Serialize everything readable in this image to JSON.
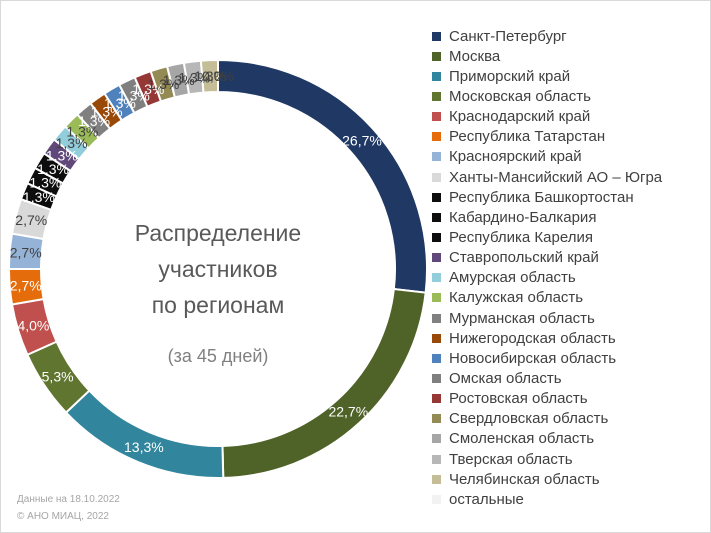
{
  "chart_data": {
    "type": "pie",
    "title_lines": [
      "Распределение",
      "участников",
      "по регионам"
    ],
    "subtitle": "(за 45 дней)",
    "legend_position": "right",
    "slices": [
      {
        "name": "Санкт-Петербург",
        "value": 26.7,
        "label": "26,7%",
        "color": "#1f3864"
      },
      {
        "name": "Москва",
        "value": 22.7,
        "label": "22,7%",
        "color": "#4f6228"
      },
      {
        "name": "Приморский край",
        "value": 13.3,
        "label": "13,3%",
        "color": "#31859c"
      },
      {
        "name": "Московская область",
        "value": 5.3,
        "label": "5,3%",
        "color": "#5f7530"
      },
      {
        "name": "Краснодарский край",
        "value": 4.0,
        "label": "4,0%",
        "color": "#c0504d"
      },
      {
        "name": "Республика Татарстан",
        "value": 2.7,
        "label": "2,7%",
        "color": "#e46c0a"
      },
      {
        "name": "Красноярский край",
        "value": 2.7,
        "label": "2,7%",
        "color": "#95b3d7"
      },
      {
        "name": "Ханты-Мансийский АО – Югра",
        "value": 2.7,
        "label": "2,7%",
        "color": "#d9d9d9"
      },
      {
        "name": "Республика Башкортостан",
        "value": 1.3,
        "label": "1,3%",
        "color": "#0d0d0d"
      },
      {
        "name": "Кабардино-Балкария",
        "value": 1.3,
        "label": "1,3%",
        "color": "#0d0d0d"
      },
      {
        "name": "Республика Карелия",
        "value": 1.3,
        "label": "1,3%",
        "color": "#0d0d0d"
      },
      {
        "name": "Ставропольский край",
        "value": 1.3,
        "label": "1,3%",
        "color": "#60497a"
      },
      {
        "name": "Амурская область",
        "value": 1.3,
        "label": "1,3%",
        "color": "#92cddc"
      },
      {
        "name": "Калужская область",
        "value": 1.3,
        "label": "1,3%",
        "color": "#9bbb59"
      },
      {
        "name": "Мурманская область",
        "value": 1.3,
        "label": "1,3%",
        "color": "#808080"
      },
      {
        "name": "Нижегородская область",
        "value": 1.3,
        "label": "1,3%",
        "color": "#984807"
      },
      {
        "name": "Новосибирская область",
        "value": 1.3,
        "label": "1,3%",
        "color": "#4f81bd"
      },
      {
        "name": "Омская область",
        "value": 1.3,
        "label": "1,3%",
        "color": "#7f7f7f"
      },
      {
        "name": "Ростовская область",
        "value": 1.3,
        "label": "1,3%",
        "color": "#953735"
      },
      {
        "name": "Свердловская область",
        "value": 1.3,
        "label": "1,3%",
        "color": "#948a54"
      },
      {
        "name": "Смоленская область",
        "value": 1.3,
        "label": "1,3%",
        "color": "#a6a6a6"
      },
      {
        "name": "Тверская область",
        "value": 1.3,
        "label": "1,3%",
        "color": "#b7b7b7"
      },
      {
        "name": "Челябинская область",
        "value": 1.3,
        "label": "1,3%",
        "color": "#c4bd97"
      },
      {
        "name": "остальные",
        "value": 0.0,
        "label": "0,0%",
        "color": "#f2f2f2"
      }
    ]
  },
  "footer": {
    "date_note": "Данные на 18.10.2022",
    "copyright": "© АНО МИАЦ, 2022"
  }
}
